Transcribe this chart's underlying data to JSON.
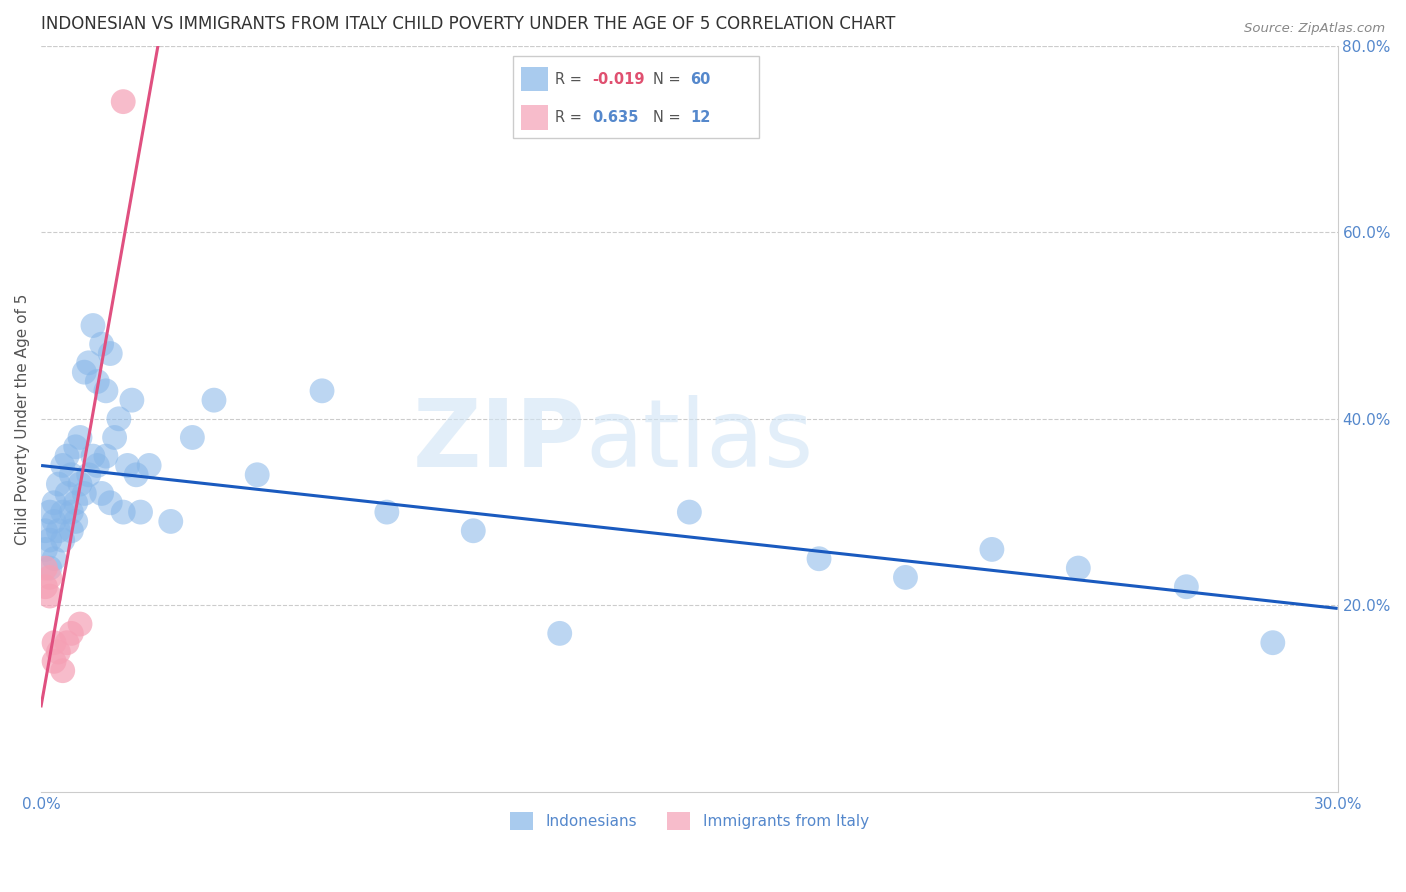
{
  "title": "INDONESIAN VS IMMIGRANTS FROM ITALY CHILD POVERTY UNDER THE AGE OF 5 CORRELATION CHART",
  "source": "Source: ZipAtlas.com",
  "ylabel": "Child Poverty Under the Age of 5",
  "xlim": [
    0,
    0.3
  ],
  "ylim": [
    0,
    0.8
  ],
  "indonesian_color": "#85b5e8",
  "italy_color": "#f5a0b5",
  "indonesian_line_color": "#1a5abf",
  "italy_line_color": "#e05080",
  "dashed_line_color": "#c0c0c0",
  "background_color": "#ffffff",
  "grid_color": "#cccccc",
  "title_color": "#333333",
  "axis_label_color": "#555555",
  "tick_color": "#5588cc",
  "leg_text1": "R = -0.019   N = 60",
  "leg_text2": "R =  0.635   N =  12",
  "ind_x": [
    0.001,
    0.001,
    0.002,
    0.002,
    0.002,
    0.003,
    0.003,
    0.003,
    0.004,
    0.004,
    0.005,
    0.005,
    0.005,
    0.006,
    0.006,
    0.007,
    0.007,
    0.007,
    0.008,
    0.008,
    0.008,
    0.009,
    0.009,
    0.01,
    0.01,
    0.011,
    0.011,
    0.012,
    0.012,
    0.013,
    0.013,
    0.014,
    0.014,
    0.015,
    0.015,
    0.016,
    0.016,
    0.017,
    0.018,
    0.019,
    0.02,
    0.021,
    0.022,
    0.023,
    0.025,
    0.03,
    0.035,
    0.04,
    0.05,
    0.065,
    0.08,
    0.1,
    0.12,
    0.15,
    0.18,
    0.2,
    0.22,
    0.24,
    0.265,
    0.285
  ],
  "ind_y": [
    0.26,
    0.28,
    0.24,
    0.3,
    0.27,
    0.25,
    0.31,
    0.29,
    0.33,
    0.28,
    0.3,
    0.35,
    0.27,
    0.32,
    0.36,
    0.34,
    0.28,
    0.3,
    0.37,
    0.31,
    0.29,
    0.38,
    0.33,
    0.45,
    0.32,
    0.46,
    0.34,
    0.5,
    0.36,
    0.44,
    0.35,
    0.48,
    0.32,
    0.43,
    0.36,
    0.47,
    0.31,
    0.38,
    0.4,
    0.3,
    0.35,
    0.42,
    0.34,
    0.3,
    0.35,
    0.29,
    0.38,
    0.42,
    0.34,
    0.43,
    0.3,
    0.28,
    0.17,
    0.3,
    0.25,
    0.23,
    0.26,
    0.24,
    0.22,
    0.16
  ],
  "ita_x": [
    0.001,
    0.001,
    0.002,
    0.002,
    0.003,
    0.003,
    0.004,
    0.005,
    0.006,
    0.007,
    0.009,
    0.019
  ],
  "ita_y": [
    0.22,
    0.24,
    0.21,
    0.23,
    0.14,
    0.16,
    0.15,
    0.13,
    0.16,
    0.17,
    0.18,
    0.74
  ]
}
